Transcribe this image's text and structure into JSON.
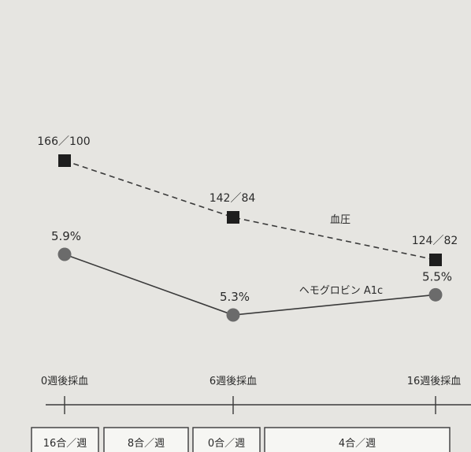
{
  "chart_data": {
    "type": "line",
    "x_categories": [
      "0週後採血",
      "6週後採血",
      "16週後採血"
    ],
    "series": [
      {
        "name": "血圧",
        "marker": "square",
        "line": "dashed",
        "points": [
          {
            "x": "0週後採血",
            "label": "166／100",
            "systolic": 166,
            "diastolic": 100
          },
          {
            "x": "6週後採血",
            "label": "142／84",
            "systolic": 142,
            "diastolic": 84
          },
          {
            "x": "16週後採血",
            "label": "124／82",
            "systolic": 124,
            "diastolic": 82
          }
        ]
      },
      {
        "name": "ヘモグロビン A1c",
        "marker": "circle",
        "line": "solid",
        "points": [
          {
            "x": "0週後採血",
            "label": "5.9%",
            "value": 5.9
          },
          {
            "x": "6週後採血",
            "label": "5.3%",
            "value": 5.3
          },
          {
            "x": "16週後採血",
            "label": "5.5%",
            "value": 5.5
          }
        ]
      }
    ],
    "bottom_boxes": [
      "16合／週",
      "8合／週",
      "0合／週",
      "4合／週"
    ]
  },
  "colors": {
    "background": "#e6e5e1",
    "line": "#3a3a3a",
    "bp_marker": "#1e1e1e",
    "a1c_marker": "#6b6b6b",
    "text": "#2a2a2a",
    "box_bg": "#f6f6f3"
  }
}
